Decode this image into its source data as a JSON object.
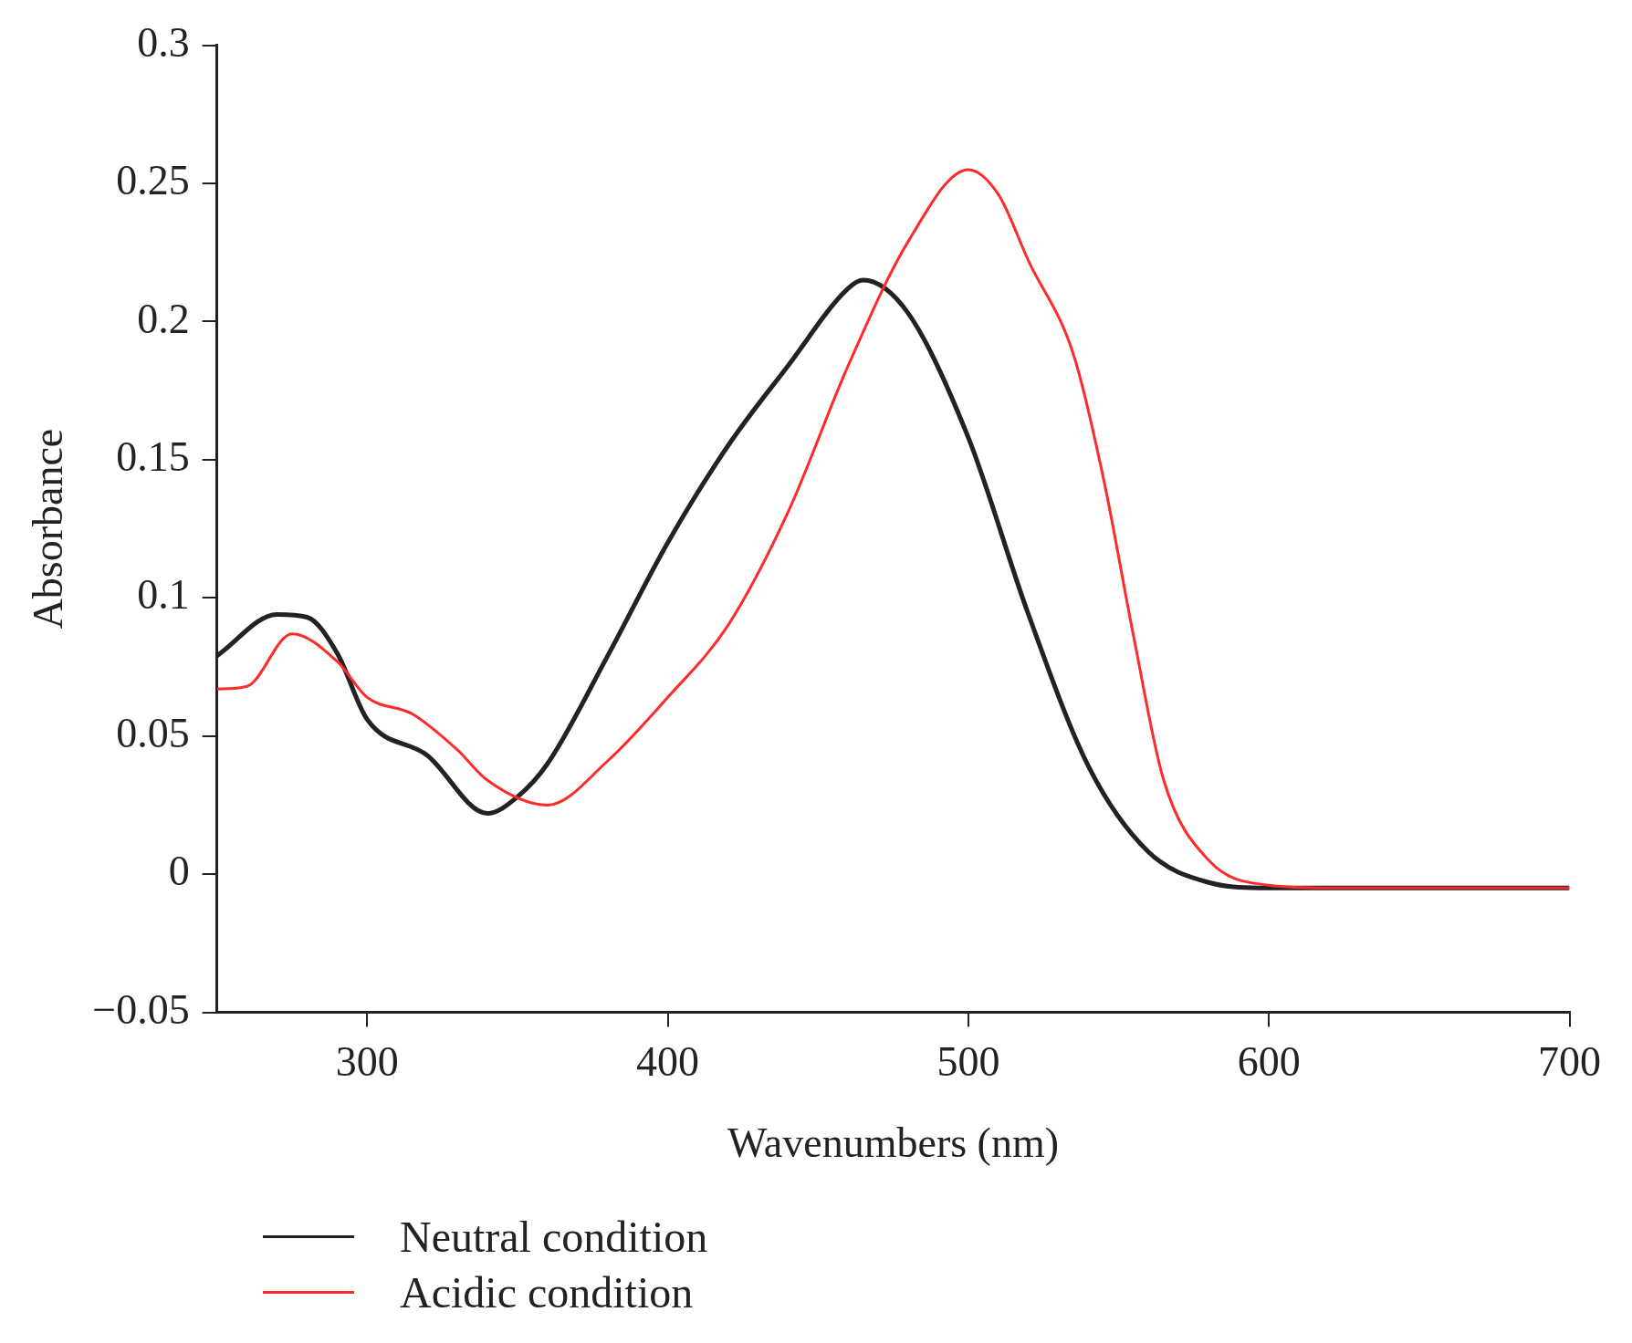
{
  "chart_data": {
    "type": "line",
    "xlabel": "Wavenumbers (nm)",
    "ylabel": "Absorbance",
    "xlim": [
      250,
      700
    ],
    "xticks": [
      300,
      400,
      500,
      600,
      700
    ],
    "ylim": [
      -0.05,
      0.3
    ],
    "yticks": [
      {
        "value": -0.05,
        "label": "−0.05"
      },
      0,
      0.05,
      0.1,
      0.15,
      0.2,
      0.25,
      0.3
    ],
    "grid": false,
    "legend": "bottom left",
    "marker": "none",
    "line_style": "solid",
    "series": [
      {
        "name": "Neutral condition",
        "color": "#222222",
        "x": [
          250,
          270,
          280,
          290,
          300,
          320,
          340,
          350,
          360,
          380,
          400,
          420,
          440,
          460,
          465,
          480,
          500,
          520,
          540,
          560,
          580,
          600,
          650,
          700
        ],
        "values": [
          0.079,
          0.094,
          0.093,
          0.08,
          0.056,
          0.043,
          0.022,
          0.028,
          0.04,
          0.079,
          0.12,
          0.155,
          0.184,
          0.212,
          0.215,
          0.203,
          0.158,
          0.094,
          0.039,
          0.008,
          -0.003,
          -0.005,
          -0.005,
          -0.005
        ]
      },
      {
        "name": "Acidic condition",
        "color": "#ff2a2a",
        "x": [
          250,
          260,
          275,
          290,
          300,
          315,
          330,
          340,
          360,
          380,
          400,
          420,
          440,
          460,
          480,
          500,
          510,
          520,
          535,
          545,
          555,
          565,
          580,
          600,
          620,
          700
        ],
        "values": [
          0.067,
          0.068,
          0.087,
          0.077,
          0.064,
          0.058,
          0.045,
          0.034,
          0.025,
          0.041,
          0.064,
          0.09,
          0.131,
          0.184,
          0.229,
          0.255,
          0.246,
          0.222,
          0.188,
          0.143,
          0.086,
          0.034,
          0.005,
          -0.004,
          -0.005,
          -0.005
        ]
      }
    ]
  }
}
